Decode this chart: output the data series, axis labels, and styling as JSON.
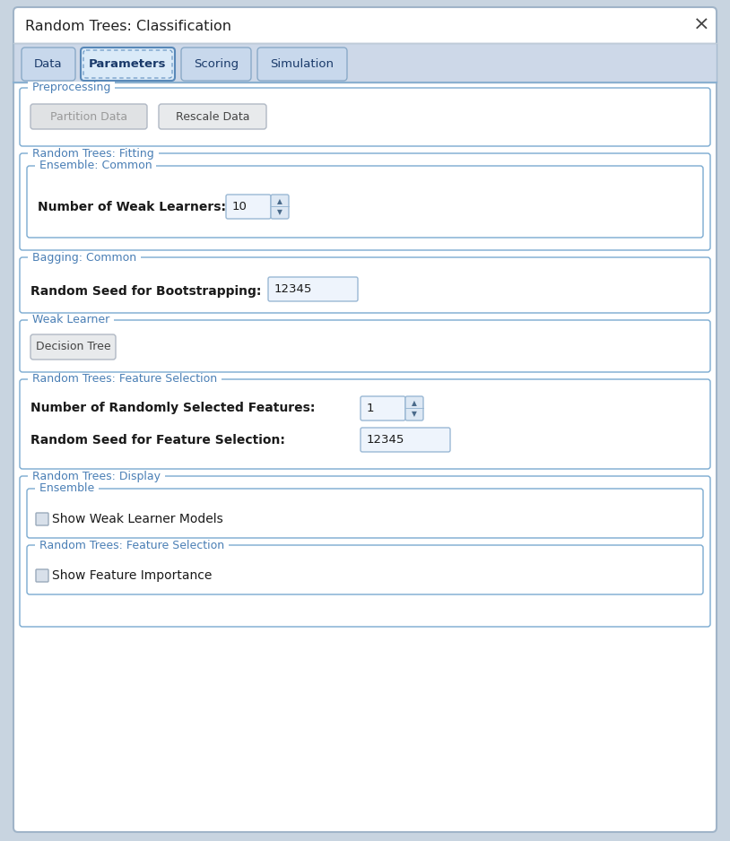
{
  "title": "Random Trees: Classification",
  "outer_bg": "#c8d4e0",
  "dialog_bg": "#ffffff",
  "title_bar_bg": "#ffffff",
  "tab_bar_bg": "#cdd8e8",
  "section_label_color": "#4a7fb5",
  "label_color": "#1a1a1a",
  "input_bg": "#eef4fc",
  "button_bg_disabled": "#e0e2e4",
  "button_bg_enabled": "#e8eaec",
  "tab_active": "Parameters",
  "tabs": [
    "Data",
    "Parameters",
    "Scoring",
    "Simulation"
  ],
  "tab_colors": {
    "active_bg": "#d8e8f8",
    "active_border": "#6090c0",
    "inactive_bg": "#c8d8ec",
    "inactive_border": "#90a8c0"
  },
  "group_border": "#7aaad0",
  "group_bg": "#ffffff",
  "spinner_arrow_bg": "#dde8f4",
  "checkbox_bg": "#d8e0ea",
  "checkbox_border": "#9aaabb"
}
